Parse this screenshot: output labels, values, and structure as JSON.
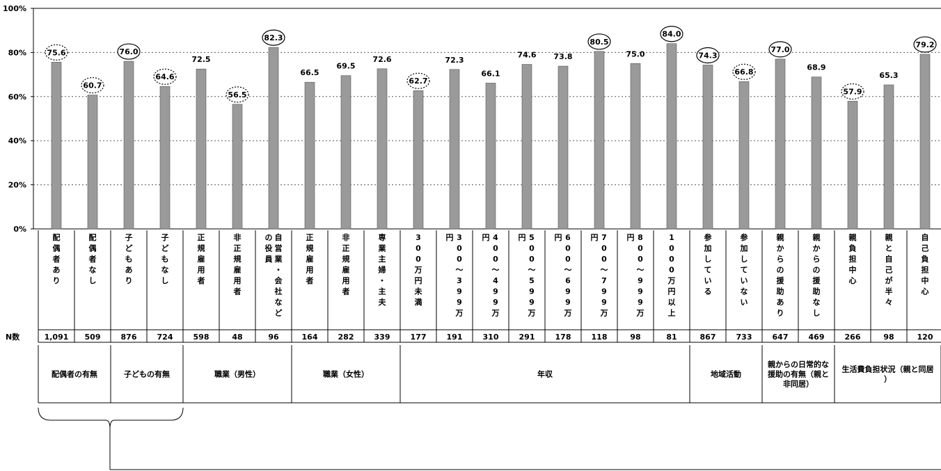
{
  "chart_data": {
    "type": "bar",
    "y_ticks": [
      "0%",
      "20%",
      "40%",
      "60%",
      "80%",
      "100%"
    ],
    "ylim": [
      0,
      100
    ],
    "grid": "dashed horizontal",
    "n_label": "N数",
    "bar_color": "#9a9a9a",
    "categories": [
      "配偶者あり",
      "配偶者なし",
      "子どもあり",
      "子どもなし",
      "正規雇用者",
      "非正規雇用者",
      "自営業・会社などの役員",
      "正規雇用者",
      "非正規雇用者",
      "専業主婦・主夫",
      "300万円未満",
      "300～399万円",
      "400～499万円",
      "500～599万円",
      "600～699万円",
      "700～799万円",
      "800～999万円",
      "1000万円以上",
      "参加している",
      "参加していない",
      "親からの援助あり",
      "親からの援助なし",
      "親負担中心",
      "親と自己が半々",
      "自己負担中心"
    ],
    "values": [
      75.6,
      60.7,
      76.0,
      64.6,
      72.5,
      56.5,
      82.3,
      66.5,
      69.5,
      72.6,
      62.7,
      72.3,
      66.1,
      74.6,
      73.8,
      80.5,
      75.0,
      84.0,
      74.3,
      66.8,
      77.0,
      68.9,
      57.9,
      65.3,
      79.2
    ],
    "value_labels": [
      "75.6",
      "60.7",
      "76.0",
      "64.6",
      "72.5",
      "56.5",
      "82.3",
      "66.5",
      "69.5",
      "72.6",
      "62.7",
      "72.3",
      "66.1",
      "74.6",
      "73.8",
      "80.5",
      "75.0",
      "84.0",
      "74.3",
      "66.8",
      "77.0",
      "68.9",
      "57.9",
      "65.3",
      "79.2"
    ],
    "n_values": [
      "1,091",
      "509",
      "876",
      "724",
      "598",
      "48",
      "96",
      "164",
      "282",
      "339",
      "177",
      "191",
      "310",
      "291",
      "178",
      "118",
      "98",
      "81",
      "867",
      "733",
      "647",
      "469",
      "266",
      "98",
      "120"
    ],
    "highlight_solid": [
      2,
      6,
      15,
      17,
      18,
      20,
      24
    ],
    "highlight_dotted": [
      0,
      1,
      3,
      5,
      10,
      19,
      22
    ],
    "groups": [
      {
        "label": "配偶者の有無",
        "start": 0,
        "end": 1
      },
      {
        "label": "子どもの有無",
        "start": 2,
        "end": 3
      },
      {
        "label": "職業（男性）",
        "start": 4,
        "end": 6
      },
      {
        "label": "職業（女性）",
        "start": 7,
        "end": 9
      },
      {
        "label": "年収",
        "start": 10,
        "end": 17
      },
      {
        "label": "地域活動",
        "start": 18,
        "end": 19
      },
      {
        "label": "親からの日常的な援助の有無（親と非同居）",
        "start": 20,
        "end": 21
      },
      {
        "label": "生活費負担状況（親と同居）",
        "start": 22,
        "end": 24
      }
    ]
  }
}
